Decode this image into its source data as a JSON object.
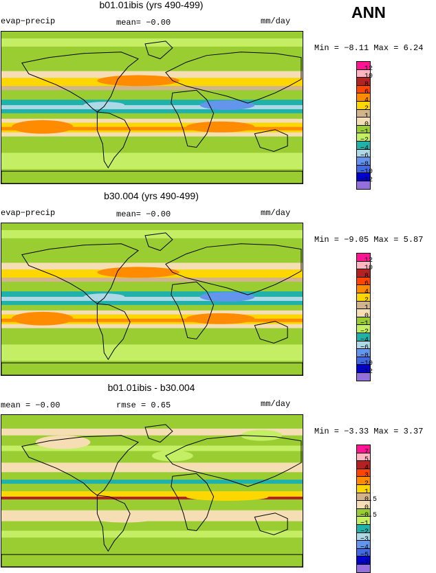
{
  "season": "ANN",
  "panels": [
    {
      "title": "b01.01ibis (yrs 490-499)",
      "left": "evap−precip",
      "center": "mean=  −0.00",
      "units": "mm/day",
      "stats": "Min =  −8.11 Max =   6.24"
    },
    {
      "title": "b30.004 (yrs 490-499)",
      "left": "evap−precip",
      "center": "mean=  −0.00",
      "units": "mm/day",
      "stats": "Min =  −9.05 Max =   5.87"
    },
    {
      "title": "b01.01ibis - b30.004",
      "left": "mean =  −0.00",
      "center": "rmse =   0.65",
      "units": "mm/day",
      "stats": "Min =  −3.33 Max =   3.37"
    }
  ],
  "colors": [
    "#ff1493",
    "#ffb6c1",
    "#b22222",
    "#ff4500",
    "#ff8c00",
    "#ffd700",
    "#d2b48c",
    "#f5deb3",
    "#9acd32",
    "#c4ee64",
    "#20b2aa",
    "#add8e6",
    "#6495ed",
    "#4169e1",
    "#0000cd",
    "#9370db"
  ],
  "chart_data": [
    {
      "type": "heatmap",
      "title": "b01.01ibis (yrs 490-499)",
      "variable": "evap−precip",
      "units": "mm/day",
      "mean": -0.0,
      "min": -8.11,
      "max": 6.24,
      "contour_levels": [
        "12",
        "10",
        "8",
        "6",
        "4",
        "2",
        "1",
        "0",
        "−1",
        "−2",
        "−4",
        "−6",
        "−8",
        "−10",
        "−12"
      ]
    },
    {
      "type": "heatmap",
      "title": "b30.004 (yrs 490-499)",
      "variable": "evap−precip",
      "units": "mm/day",
      "mean": -0.0,
      "min": -9.05,
      "max": 5.87,
      "contour_levels": [
        "12",
        "10",
        "8",
        "6",
        "4",
        "2",
        "1",
        "0",
        "−1",
        "−2",
        "−4",
        "−6",
        "−8",
        "−10",
        "−12"
      ]
    },
    {
      "type": "heatmap",
      "title": "b01.01ibis - b30.004",
      "units": "mm/day",
      "mean": -0.0,
      "rmse": 0.65,
      "min": -3.33,
      "max": 3.37,
      "contour_levels": [
        "7",
        "5",
        "4",
        "3",
        "2",
        "1",
        "0.5",
        "0",
        "−0.5",
        "−1",
        "−2",
        "−3",
        "−4",
        "−5",
        "−7"
      ]
    }
  ]
}
